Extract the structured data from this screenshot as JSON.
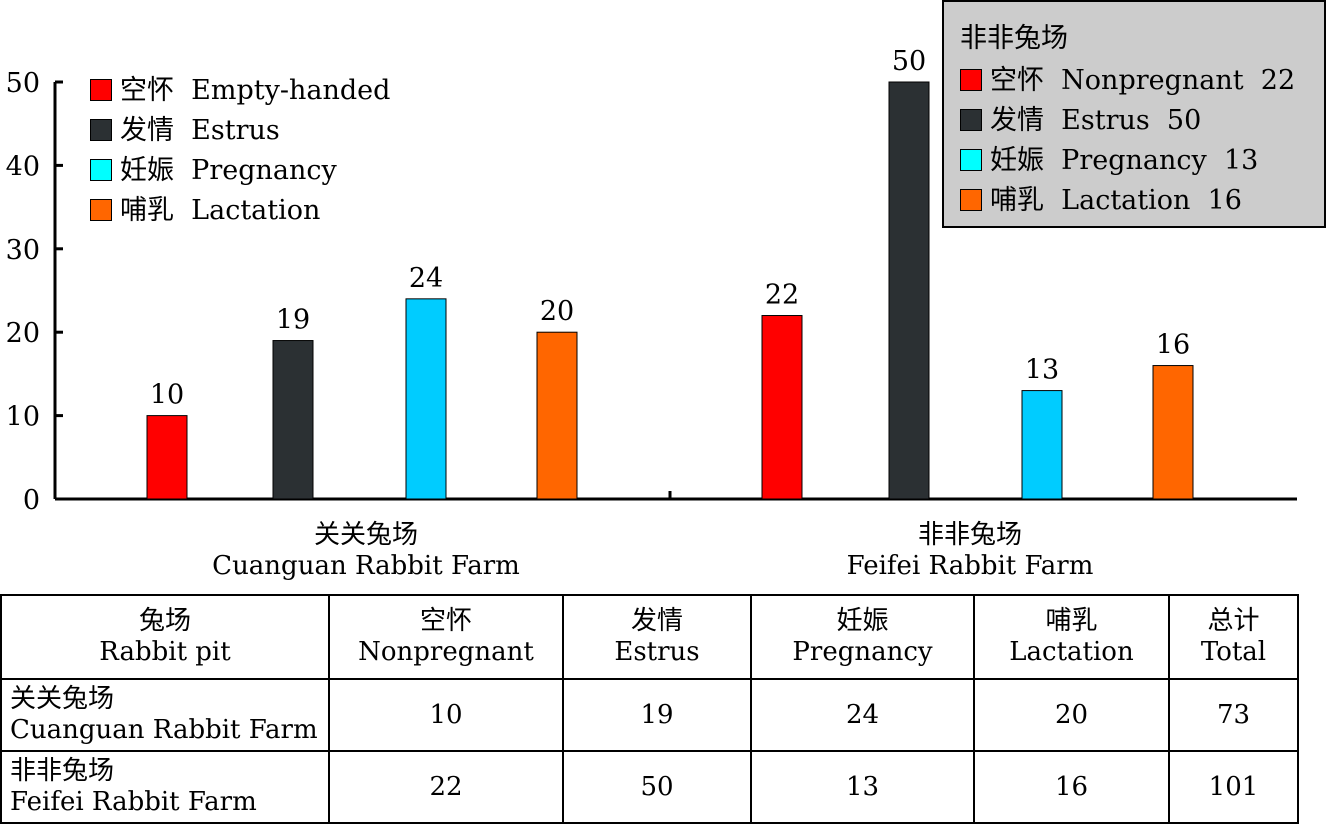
{
  "chart_data": {
    "type": "bar",
    "categories": [
      "关关兔场 Cuanguan Rabbit Farm",
      "非非兔场 Feifei Rabbit Farm"
    ],
    "category_labels": [
      {
        "cn": "关关兔场",
        "en": "Cuanguan Rabbit Farm"
      },
      {
        "cn": "非非兔场",
        "en": "Feifei Rabbit Farm"
      }
    ],
    "series": [
      {
        "name": "空怀 Empty-handed",
        "color": "#ff0000",
        "values": [
          10,
          22
        ]
      },
      {
        "name": "发情 Estrus",
        "color": "#2b3033",
        "values": [
          19,
          50
        ]
      },
      {
        "name": "妊娠 Pregnancy",
        "color": "#00ccff",
        "values": [
          24,
          13
        ]
      },
      {
        "name": "哺乳 Lactation",
        "color": "#ff6600",
        "values": [
          20,
          16
        ]
      }
    ],
    "ylim": [
      0,
      50
    ],
    "yticks": [
      "0",
      "10",
      "20",
      "30",
      "40",
      "50"
    ],
    "legend_left": {
      "placement": "top-left",
      "items": [
        {
          "cn": "空怀",
          "en": "Empty-handed",
          "color": "#ff0000"
        },
        {
          "cn": "发情",
          "en": "Estrus",
          "color": "#2b3033"
        },
        {
          "cn": "妊娠",
          "en": "Pregnancy",
          "color": "#00ffff"
        },
        {
          "cn": "哺乳",
          "en": "Lactation",
          "color": "#ff6600"
        }
      ]
    },
    "legend_right": {
      "placement": "top-right",
      "title": "非非兔场",
      "items": [
        {
          "cn": "空怀",
          "en": "Nonpregnant",
          "value": "22",
          "color": "#ff0000"
        },
        {
          "cn": "发情",
          "en": "Estrus",
          "value": "50",
          "color": "#2b3033"
        },
        {
          "cn": "妊娠",
          "en": "Pregnancy",
          "value": "13",
          "color": "#00ffff"
        },
        {
          "cn": "哺乳",
          "en": "Lactation",
          "value": "16",
          "color": "#ff6600"
        }
      ]
    }
  },
  "table": {
    "headers": [
      {
        "cn": "兔场",
        "en": "Rabbit pit"
      },
      {
        "cn": "空怀",
        "en": "Nonpregnant"
      },
      {
        "cn": "发情",
        "en": "Estrus"
      },
      {
        "cn": "妊娠",
        "en": "Pregnancy"
      },
      {
        "cn": "哺乳",
        "en": "Lactation"
      },
      {
        "cn": "总计",
        "en": "Total"
      }
    ],
    "rows": [
      {
        "cn": "关关兔场",
        "en": "Cuanguan Rabbit Farm",
        "cells": [
          "10",
          "19",
          "24",
          "20",
          "73"
        ]
      },
      {
        "cn": "非非兔场",
        "en": "Feifei Rabbit Farm",
        "cells": [
          "22",
          "50",
          "13",
          "16",
          "101"
        ]
      }
    ]
  }
}
